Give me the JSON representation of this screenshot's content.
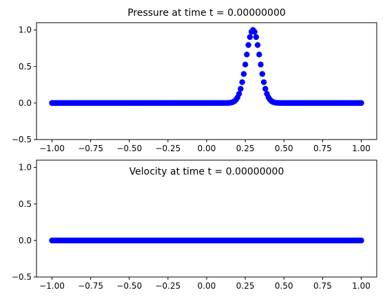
{
  "chart_data": [
    {
      "type": "scatter",
      "title": "Pressure at time t =      0.00000000",
      "xlabel": "",
      "ylabel": "",
      "xlim": [
        -1.1,
        1.1
      ],
      "ylim": [
        -0.5,
        1.1
      ],
      "x_ticks": [
        -1.0,
        -0.75,
        -0.5,
        -0.25,
        0.0,
        0.25,
        0.5,
        0.75,
        1.0
      ],
      "x_tick_labels": [
        "−1.00",
        "−0.75",
        "−0.50",
        "−0.25",
        "0.00",
        "0.25",
        "0.50",
        "0.75",
        "1.00"
      ],
      "y_ticks": [
        -0.5,
        0.0,
        0.5,
        1.0
      ],
      "y_tick_labels": [
        "−0.5",
        "0.0",
        "0.5",
        "1.0"
      ],
      "grid": false,
      "marker_color": "#0000ff",
      "series": [
        {
          "x_range": [
            -1.0,
            1.0
          ],
          "num_points": 201,
          "profile": "gaussian",
          "center": 0.3,
          "amplitude": 1.0,
          "width": 0.0625
        }
      ]
    },
    {
      "type": "scatter",
      "title": "Velocity at time t =      0.00000000",
      "xlabel": "",
      "ylabel": "",
      "xlim": [
        -1.1,
        1.1
      ],
      "ylim": [
        -0.5,
        1.1
      ],
      "x_ticks": [
        -1.0,
        -0.75,
        -0.5,
        -0.25,
        0.0,
        0.25,
        0.5,
        0.75,
        1.0
      ],
      "x_tick_labels": [
        "−1.00",
        "−0.75",
        "−0.50",
        "−0.25",
        "0.00",
        "0.25",
        "0.50",
        "0.75",
        "1.00"
      ],
      "y_ticks": [
        -0.5,
        0.0,
        0.5,
        1.0
      ],
      "y_tick_labels": [
        "−0.5",
        "0.0",
        "0.5",
        "1.0"
      ],
      "grid": false,
      "marker_color": "#0000ff",
      "series": [
        {
          "x_range": [
            -1.0,
            1.0
          ],
          "num_points": 201,
          "profile": "constant",
          "value": 0.0
        }
      ]
    }
  ]
}
